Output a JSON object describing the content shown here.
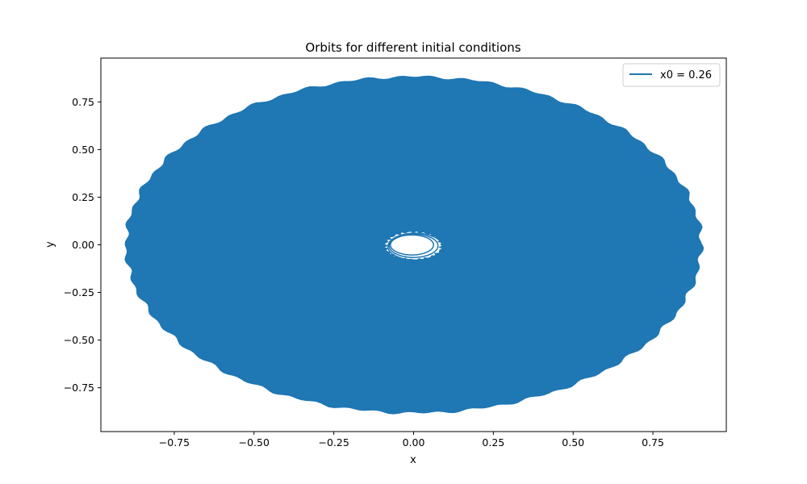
{
  "chart_data": {
    "type": "line",
    "title": "Orbits for different initial conditions",
    "xlabel": "x",
    "ylabel": "y",
    "xlim": [
      -0.98,
      0.98
    ],
    "ylim": [
      -0.98,
      0.98
    ],
    "xticks": [
      -0.75,
      -0.5,
      -0.25,
      0.0,
      0.25,
      0.5,
      0.75
    ],
    "xtick_labels": [
      "−0.75",
      "−0.50",
      "−0.25",
      "0.00",
      "0.25",
      "0.50",
      "0.75"
    ],
    "yticks": [
      -0.75,
      -0.5,
      -0.25,
      0.0,
      0.25,
      0.5,
      0.75
    ],
    "ytick_labels": [
      "−0.75",
      "−0.50",
      "−0.25",
      "0.00",
      "0.25",
      "0.50",
      "0.75"
    ],
    "grid": false,
    "legend": {
      "placement": "top-right",
      "entries": [
        "x0 = 0.26"
      ]
    },
    "series": [
      {
        "name": "x0 = 0.26",
        "color": "#1f77b4",
        "outer_extent": {
          "x": [
            -0.9,
            0.9
          ],
          "y": [
            -0.88,
            0.88
          ]
        },
        "inner_hole_extent": {
          "x": [
            -0.09,
            0.09
          ],
          "y": [
            -0.08,
            0.07
          ]
        }
      }
    ]
  }
}
